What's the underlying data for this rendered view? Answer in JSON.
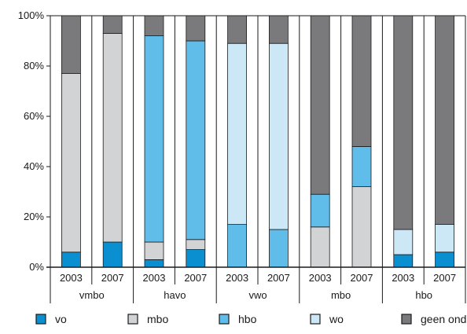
{
  "chart_data": {
    "type": "bar",
    "stacked": true,
    "title": "",
    "xlabel": "",
    "ylabel": "",
    "ylim": [
      0,
      100
    ],
    "yticks": [
      "0%",
      "20%",
      "40%",
      "60%",
      "80%",
      "100%"
    ],
    "grid": "vertical",
    "legend_position": "bottom",
    "groups": [
      "vmbo",
      "havo",
      "vwo",
      "mbo",
      "hbo"
    ],
    "categories": [
      "2003",
      "2007",
      "2003",
      "2007",
      "2003",
      "2007",
      "2003",
      "2007",
      "2003",
      "2007"
    ],
    "series": [
      {
        "name": "vo",
        "color": "#0a8fd0",
        "values": [
          6,
          10,
          3,
          7,
          0,
          0,
          0,
          0,
          5,
          6
        ]
      },
      {
        "name": "mbo",
        "color": "#d2d3d5",
        "values": [
          71,
          83,
          7,
          4,
          0,
          0,
          16,
          32,
          0,
          0
        ]
      },
      {
        "name": "hbo",
        "color": "#60bce9",
        "values": [
          0,
          0,
          82,
          79,
          17,
          15,
          13,
          16,
          0,
          0
        ]
      },
      {
        "name": "wo",
        "color": "#cce8f7",
        "values": [
          0,
          0,
          0,
          0,
          72,
          74,
          0,
          0,
          10,
          11
        ]
      },
      {
        "name": "geen onderwijs",
        "color": "#7a7a7c",
        "values": [
          23,
          7,
          8,
          10,
          11,
          11,
          71,
          52,
          85,
          83
        ]
      }
    ]
  }
}
